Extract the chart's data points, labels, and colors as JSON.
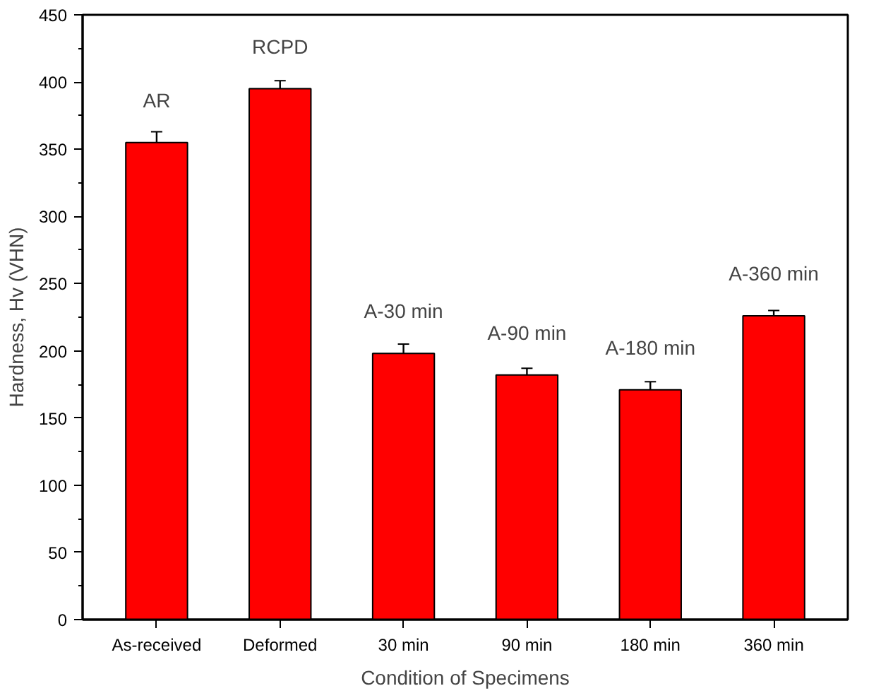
{
  "chart_data": {
    "type": "bar",
    "xlabel": "Condition of Specimens",
    "ylabel": "Hardness, Hv (VHN)",
    "categories": [
      "As-received",
      "Deformed",
      "30 min",
      "90 min",
      "180 min",
      "360 min"
    ],
    "values": [
      355,
      395,
      198,
      182,
      171,
      226
    ],
    "errors": [
      8,
      6,
      7,
      5,
      6,
      4
    ],
    "color": "#ff0000",
    "ylim": [
      0,
      450
    ],
    "yticks": [
      0,
      50,
      100,
      150,
      200,
      250,
      300,
      350,
      400,
      450
    ],
    "grid": false,
    "annotations": [
      {
        "text": "AR",
        "x": "As-received",
        "y": 355
      },
      {
        "text": "RCPD",
        "x": "Deformed",
        "y": 395
      },
      {
        "text": "A-30 min",
        "x": "30 min",
        "y": 198
      },
      {
        "text": "A-90 min",
        "x": "90 min",
        "y": 182
      },
      {
        "text": "A-180 min",
        "x": "180 min",
        "y": 171
      },
      {
        "text": "A-360 min",
        "x": "360 min",
        "y": 226
      }
    ]
  }
}
